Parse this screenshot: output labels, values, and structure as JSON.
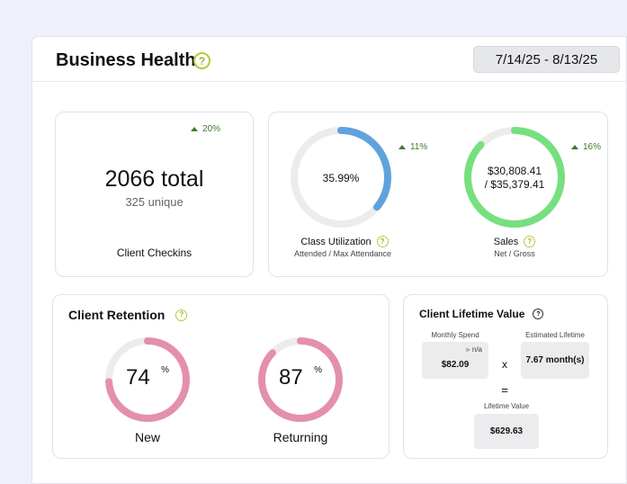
{
  "header": {
    "title": "Business Health",
    "help_icon": "?",
    "date_range": "7/14/25 - 8/13/25"
  },
  "checkins": {
    "trend": "20%",
    "total": "2066 total",
    "unique": "325 unique",
    "label": "Client Checkins"
  },
  "utilization": {
    "value_text": "35.99%",
    "value": 35.99,
    "trend": "11%",
    "label": "Class Utilization",
    "sublabel": "Attended / Max Attendance",
    "color": "#5fa3dc"
  },
  "sales": {
    "value_line1": "$30,808.41",
    "value_line2": "/ $35,379.41",
    "net": 30808.41,
    "gross": 35379.41,
    "trend": "16%",
    "label": "Sales",
    "sublabel": "Net / Gross",
    "color": "#76e07f"
  },
  "retention": {
    "title": "Client Retention",
    "new": {
      "value": "74",
      "unit": "%",
      "label": "New",
      "percent": 74
    },
    "returning": {
      "value": "87",
      "unit": "%",
      "label": "Returning",
      "percent": 87
    },
    "color": "#e48fae"
  },
  "clv": {
    "title": "Client Lifetime Value",
    "monthly_spend_label": "Monthly Spend",
    "monthly_spend_trend": "n/a",
    "monthly_spend": "$82.09",
    "times": "x",
    "lifetime_label": "Estimated Lifetime",
    "lifetime": "7.67 month(s)",
    "equals": "=",
    "value_label": "Lifetime Value",
    "value": "$629.63"
  },
  "colors": {
    "ring_track": "#ececec",
    "help": "#a1b42a",
    "trend": "#3f7a2e"
  }
}
